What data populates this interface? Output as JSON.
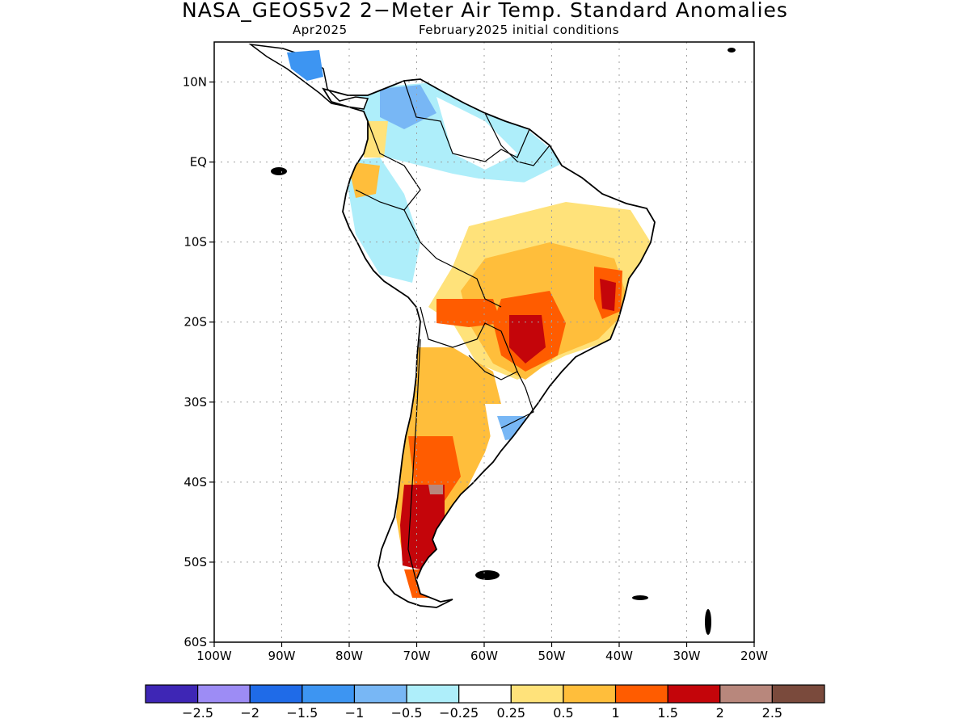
{
  "title": "NASA_GEOS5v2 2−Meter Air Temp. Standard Anomalies",
  "subtitle_left": "Apr2025",
  "subtitle_right": "February2025 initial conditions",
  "map": {
    "lon_range": [
      -100,
      -20
    ],
    "lat_range": [
      -60,
      15
    ],
    "lat_ticks": [
      {
        "value": 10,
        "label": "10N"
      },
      {
        "value": 0,
        "label": "EQ"
      },
      {
        "value": -10,
        "label": "10S"
      },
      {
        "value": -20,
        "label": "20S"
      },
      {
        "value": -30,
        "label": "30S"
      },
      {
        "value": -40,
        "label": "40S"
      },
      {
        "value": -50,
        "label": "50S"
      },
      {
        "value": -60,
        "label": "60S"
      }
    ],
    "lon_ticks": [
      {
        "value": -100,
        "label": "100W"
      },
      {
        "value": -90,
        "label": "90W"
      },
      {
        "value": -80,
        "label": "80W"
      },
      {
        "value": -70,
        "label": "70W"
      },
      {
        "value": -60,
        "label": "60W"
      },
      {
        "value": -50,
        "label": "50W"
      },
      {
        "value": -40,
        "label": "40W"
      },
      {
        "value": -30,
        "label": "30W"
      },
      {
        "value": -20,
        "label": "20W"
      }
    ],
    "grid": true
  },
  "colorbar": {
    "colors": [
      "#3e26b5",
      "#9d8cf5",
      "#1f6be8",
      "#3d95f2",
      "#78b7f5",
      "#aeeefa",
      "#ffffff",
      "#ffe27a",
      "#ffbe3b",
      "#ff5c00",
      "#c4050a",
      "#b8877c",
      "#7a4a3c"
    ],
    "labels": [
      "−2.5",
      "−2",
      "−1.5",
      "−1",
      "−0.5",
      "−0.25",
      "0.25",
      "0.5",
      "1",
      "1.5",
      "2",
      "2.5"
    ]
  },
  "colors": {
    "coast": "#000000",
    "grid": "#a0a0a0"
  }
}
